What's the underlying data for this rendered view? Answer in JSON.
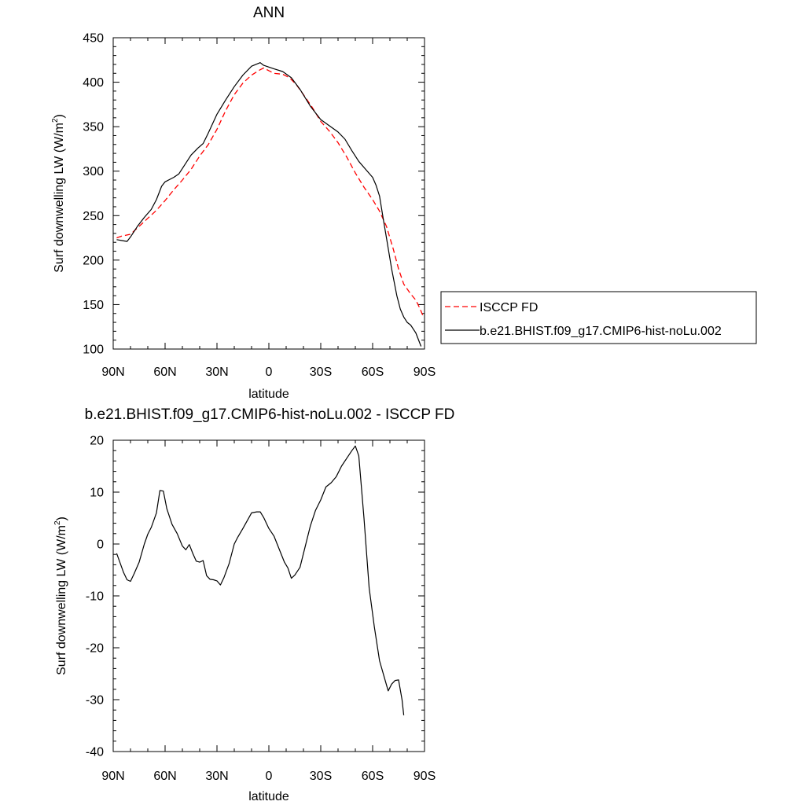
{
  "chart_data": [
    {
      "type": "line",
      "title": "ANN",
      "xlabel": "latitude",
      "ylabel_main": "Surf downwelling LW (W/m",
      "ylabel_sup": "2",
      "ylabel_end": ")",
      "x_range": [
        90,
        -90
      ],
      "ylim": [
        100,
        450
      ],
      "x_ticks": [
        {
          "value": 90,
          "label": "90N"
        },
        {
          "value": 60,
          "label": "60N"
        },
        {
          "value": 30,
          "label": "30N"
        },
        {
          "value": 0,
          "label": "0"
        },
        {
          "value": -30,
          "label": "30S"
        },
        {
          "value": -60,
          "label": "60S"
        },
        {
          "value": -90,
          "label": "90S"
        }
      ],
      "y_ticks": [
        100,
        150,
        200,
        250,
        300,
        350,
        400,
        450
      ],
      "legend_position": "right",
      "series": [
        {
          "name": "ISCCP FD",
          "color": "#ff0000",
          "dashed": true,
          "points": [
            [
              88,
              225
            ],
            [
              85,
              227
            ],
            [
              80,
              229
            ],
            [
              75,
              238
            ],
            [
              70,
              247
            ],
            [
              65,
              256
            ],
            [
              60,
              267
            ],
            [
              55,
              279
            ],
            [
              50,
              290
            ],
            [
              45,
              302
            ],
            [
              40,
              317
            ],
            [
              35,
              330
            ],
            [
              30,
              347
            ],
            [
              25,
              368
            ],
            [
              20,
              386
            ],
            [
              15,
              399
            ],
            [
              10,
              408
            ],
            [
              5,
              414
            ],
            [
              3,
              416
            ],
            [
              0,
              413
            ],
            [
              -3,
              410
            ],
            [
              -8,
              409
            ],
            [
              -12,
              405
            ],
            [
              -16,
              397
            ],
            [
              -20,
              386
            ],
            [
              -25,
              372
            ],
            [
              -30,
              356
            ],
            [
              -35,
              345
            ],
            [
              -40,
              332
            ],
            [
              -45,
              316
            ],
            [
              -50,
              298
            ],
            [
              -55,
              282
            ],
            [
              -60,
              268
            ],
            [
              -64,
              255
            ],
            [
              -68,
              238
            ],
            [
              -72,
              212
            ],
            [
              -75,
              190
            ],
            [
              -78,
              173
            ],
            [
              -82,
              162
            ],
            [
              -85,
              155
            ],
            [
              -87,
              147
            ],
            [
              -89,
              138
            ]
          ]
        },
        {
          "name": "b.e21.BHIST.f09_g17.CMIP6-hist-noLu.002",
          "color": "#000000",
          "dashed": false,
          "points": [
            [
              88,
              223
            ],
            [
              85,
              222
            ],
            [
              82,
              221
            ],
            [
              80,
              226
            ],
            [
              76,
              238
            ],
            [
              72,
              248
            ],
            [
              68,
              257
            ],
            [
              65,
              268
            ],
            [
              62,
              283
            ],
            [
              60,
              288
            ],
            [
              57,
              291
            ],
            [
              55,
              293
            ],
            [
              52,
              297
            ],
            [
              50,
              303
            ],
            [
              45,
              318
            ],
            [
              41,
              326
            ],
            [
              38,
              331
            ],
            [
              35,
              343
            ],
            [
              30,
              364
            ],
            [
              25,
              380
            ],
            [
              20,
              395
            ],
            [
              15,
              408
            ],
            [
              10,
              418
            ],
            [
              5,
              422
            ],
            [
              3,
              419
            ],
            [
              0,
              417
            ],
            [
              -3,
              415
            ],
            [
              -8,
              412
            ],
            [
              -13,
              405
            ],
            [
              -18,
              392
            ],
            [
              -24,
              373
            ],
            [
              -30,
              358
            ],
            [
              -35,
              351
            ],
            [
              -40,
              344
            ],
            [
              -44,
              336
            ],
            [
              -48,
              323
            ],
            [
              -52,
              311
            ],
            [
              -56,
              302
            ],
            [
              -60,
              293
            ],
            [
              -62,
              284
            ],
            [
              -64,
              272
            ],
            [
              -66,
              248
            ],
            [
              -68,
              225
            ],
            [
              -71,
              190
            ],
            [
              -74,
              160
            ],
            [
              -76,
              145
            ],
            [
              -78,
              136
            ],
            [
              -80,
              130
            ],
            [
              -82,
              127
            ],
            [
              -85,
              118
            ],
            [
              -88,
              103
            ]
          ]
        }
      ]
    },
    {
      "type": "line",
      "title": "b.e21.BHIST.f09_g17.CMIP6-hist-noLu.002 - ISCCP FD",
      "xlabel": "latitude",
      "ylabel_main": "Surf downwelling LW (W/m",
      "ylabel_sup": "2",
      "ylabel_end": ")",
      "x_range": [
        90,
        -90
      ],
      "ylim": [
        -40,
        20
      ],
      "x_ticks": [
        {
          "value": 90,
          "label": "90N"
        },
        {
          "value": 60,
          "label": "60N"
        },
        {
          "value": 30,
          "label": "30N"
        },
        {
          "value": 0,
          "label": "0"
        },
        {
          "value": -30,
          "label": "30S"
        },
        {
          "value": -60,
          "label": "60S"
        },
        {
          "value": -90,
          "label": "90S"
        }
      ],
      "y_ticks": [
        -40,
        -30,
        -20,
        -10,
        0,
        10,
        20
      ],
      "series": [
        {
          "color": "#000000",
          "dashed": false,
          "points": [
            [
              88,
              -1.8
            ],
            [
              84,
              -5.5
            ],
            [
              82,
              -6.9
            ],
            [
              80,
              -7.2
            ],
            [
              78,
              -5.8
            ],
            [
              75,
              -3.5
            ],
            [
              72,
              0
            ],
            [
              70,
              1.9
            ],
            [
              68,
              3.2
            ],
            [
              65,
              6
            ],
            [
              63,
              10.3
            ],
            [
              61,
              10.2
            ],
            [
              59,
              6.8
            ],
            [
              56,
              3.8
            ],
            [
              53,
              2
            ],
            [
              50,
              -0.4
            ],
            [
              48,
              -1.1
            ],
            [
              46,
              -0.1
            ],
            [
              44,
              -1.8
            ],
            [
              42,
              -3.3
            ],
            [
              40,
              -3.5
            ],
            [
              38,
              -3.2
            ],
            [
              36,
              -6.1
            ],
            [
              34,
              -6.8
            ],
            [
              32,
              -6.9
            ],
            [
              30,
              -7.1
            ],
            [
              28,
              -7.9
            ],
            [
              26,
              -6.5
            ],
            [
              23,
              -3.8
            ],
            [
              20,
              0
            ],
            [
              18,
              1.3
            ],
            [
              15,
              3
            ],
            [
              10,
              6
            ],
            [
              7,
              6.2
            ],
            [
              5,
              6.2
            ],
            [
              3,
              5.1
            ],
            [
              0,
              3
            ],
            [
              -3,
              1.5
            ],
            [
              -6,
              -1
            ],
            [
              -9,
              -3.5
            ],
            [
              -11,
              -4.6
            ],
            [
              -13,
              -6.6
            ],
            [
              -15,
              -6
            ],
            [
              -18,
              -4.5
            ],
            [
              -21,
              -0.5
            ],
            [
              -24,
              3.5
            ],
            [
              -27,
              6.5
            ],
            [
              -30,
              8.5
            ],
            [
              -33,
              11
            ],
            [
              -36,
              11.8
            ],
            [
              -39,
              13
            ],
            [
              -42,
              15
            ],
            [
              -45,
              16.5
            ],
            [
              -48,
              18
            ],
            [
              -50,
              18.9
            ],
            [
              -52,
              17
            ],
            [
              -55,
              5
            ],
            [
              -58,
              -8.5
            ],
            [
              -61,
              -16
            ],
            [
              -64,
              -22.5
            ],
            [
              -67,
              -26
            ],
            [
              -69,
              -28.3
            ],
            [
              -71,
              -27
            ],
            [
              -73,
              -26.3
            ],
            [
              -75,
              -26.2
            ],
            [
              -77,
              -30
            ],
            [
              -78,
              -33
            ]
          ]
        }
      ]
    }
  ]
}
